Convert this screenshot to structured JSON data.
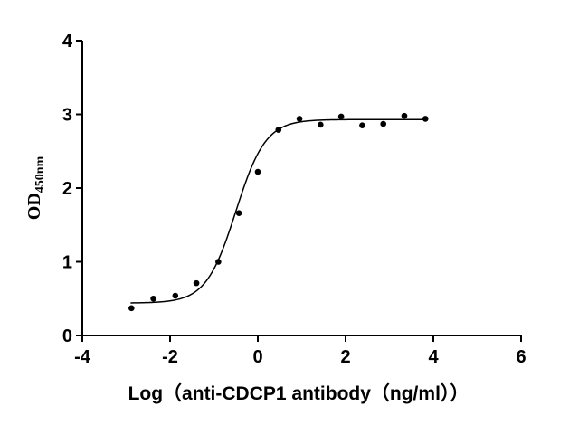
{
  "chart_data": {
    "type": "scatter",
    "xlabel": "Log（anti-CDCP1 antibody（ng/ml））",
    "ylabel": "OD",
    "ylabel_subscript": "450nm",
    "xlim": [
      -4,
      6
    ],
    "ylim": [
      0,
      4
    ],
    "x_ticks": [
      "-4",
      "-2",
      "0",
      "2",
      "4",
      "6"
    ],
    "y_ticks": [
      "0",
      "1",
      "2",
      "3",
      "4"
    ],
    "grid": false,
    "series": [
      {
        "x": [
          -2.88,
          -2.38,
          -1.88,
          -1.4,
          -0.9,
          -0.43,
          0.0,
          0.47,
          0.95,
          1.43,
          1.9,
          2.38,
          2.86,
          3.34,
          3.82
        ],
        "y": [
          0.37,
          0.5,
          0.54,
          0.71,
          1.0,
          1.66,
          2.22,
          2.79,
          2.94,
          2.86,
          2.97,
          2.85,
          2.87,
          2.98,
          2.94
        ],
        "marker": "circle",
        "color": "#000000"
      }
    ],
    "fit_curve": {
      "model": "4PL",
      "bottom": 0.44,
      "top": 2.93,
      "ec50_log": -0.5,
      "hill_slope": 1.28,
      "x_range": [
        -2.9,
        3.85
      ],
      "color": "#000000"
    }
  }
}
